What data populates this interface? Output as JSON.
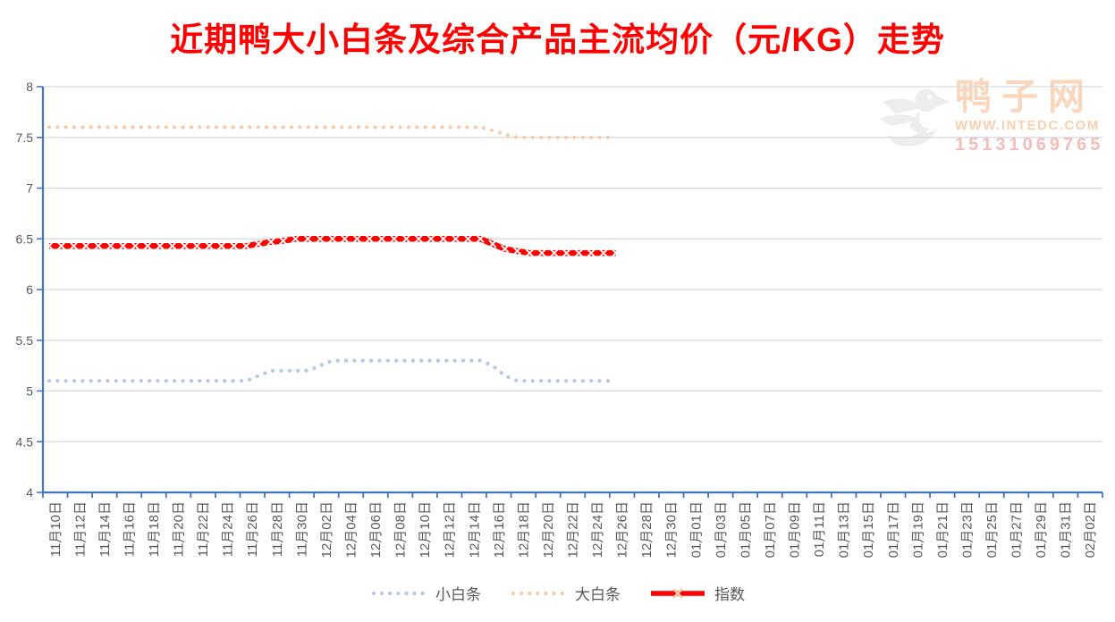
{
  "chart_data": {
    "type": "line",
    "title": "近期鸭大小白条及综合产品主流均价（元/KG）走势",
    "xlabel": "",
    "ylabel": "",
    "ylim": [
      4,
      8
    ],
    "ytick_step": 0.5,
    "yticks": [
      "8",
      "7.5",
      "7",
      "6.5",
      "6",
      "5.5",
      "5",
      "4.5",
      "4"
    ],
    "grid": "horizontal",
    "legend_position": "bottom",
    "x_label_interval_days": 2,
    "data_start": "11月10日",
    "data_end": "12月26日",
    "x_labels": [
      "11月10日",
      "11月12日",
      "11月14日",
      "11月16日",
      "11月18日",
      "11月20日",
      "11月22日",
      "11月24日",
      "11月26日",
      "11月28日",
      "11月30日",
      "12月02日",
      "12月04日",
      "12月06日",
      "12月08日",
      "12月10日",
      "12月12日",
      "12月14日",
      "12月16日",
      "12月18日",
      "12月20日",
      "12月22日",
      "12月24日",
      "12月26日",
      "12月28日",
      "12月30日",
      "01月01日",
      "01月03日",
      "01月05日",
      "01月07日",
      "01月09日",
      "01月11日",
      "01月13日",
      "01月15日",
      "01月17日",
      "01月19日",
      "01月21日",
      "01月23日",
      "01月25日",
      "01月27日",
      "01月29日",
      "01月31日",
      "02月02日"
    ],
    "series": [
      {
        "name": "小白条",
        "color": "#B4C7E7",
        "style": "dotted",
        "values": [
          5.1,
          5.1,
          5.1,
          5.1,
          5.1,
          5.1,
          5.1,
          5.1,
          5.1,
          5.1,
          5.1,
          5.1,
          5.1,
          5.1,
          5.1,
          5.1,
          5.1,
          5.15,
          5.2,
          5.2,
          5.2,
          5.2,
          5.25,
          5.3,
          5.3,
          5.3,
          5.3,
          5.3,
          5.3,
          5.3,
          5.3,
          5.3,
          5.3,
          5.3,
          5.3,
          5.3,
          5.25,
          5.15,
          5.1,
          5.1,
          5.1,
          5.1,
          5.1,
          5.1,
          5.1,
          5.1,
          5.1
        ]
      },
      {
        "name": "大白条",
        "color": "#F8CBAD",
        "style": "dotted",
        "values": [
          7.6,
          7.6,
          7.6,
          7.6,
          7.6,
          7.6,
          7.6,
          7.6,
          7.6,
          7.6,
          7.6,
          7.6,
          7.6,
          7.6,
          7.6,
          7.6,
          7.6,
          7.6,
          7.6,
          7.6,
          7.6,
          7.6,
          7.6,
          7.6,
          7.6,
          7.6,
          7.6,
          7.6,
          7.6,
          7.6,
          7.6,
          7.6,
          7.6,
          7.6,
          7.6,
          7.6,
          7.57,
          7.53,
          7.5,
          7.5,
          7.5,
          7.5,
          7.5,
          7.5,
          7.5,
          7.5,
          7.5
        ]
      },
      {
        "name": "指数",
        "color": "#FF0000",
        "style": "solid-x-marker",
        "values": [
          6.43,
          6.43,
          6.43,
          6.43,
          6.43,
          6.43,
          6.43,
          6.43,
          6.43,
          6.43,
          6.43,
          6.43,
          6.43,
          6.43,
          6.43,
          6.43,
          6.43,
          6.45,
          6.47,
          6.48,
          6.5,
          6.5,
          6.5,
          6.5,
          6.5,
          6.5,
          6.5,
          6.5,
          6.5,
          6.5,
          6.5,
          6.5,
          6.5,
          6.5,
          6.5,
          6.5,
          6.45,
          6.4,
          6.38,
          6.36,
          6.36,
          6.36,
          6.36,
          6.36,
          6.36,
          6.36,
          6.36
        ]
      }
    ]
  },
  "watermark": {
    "brand": "鸭子网",
    "site": "WWW.INTEDC.COM",
    "phone": "15131069765"
  },
  "colors": {
    "title": "#FF0000",
    "axis": "#4472C4",
    "gridline": "#D9D9D9",
    "tick_label": "#595959",
    "legend_text": "#595959",
    "marker_x_on_line": "#FFFFFF",
    "legend_x_marker": "#F5C9A6",
    "watermark_brand": "#FAD7BC",
    "watermark_site": "#F9CFAC",
    "watermark_phone": "#F5BCBC",
    "duck_logo": "#EDEDED"
  }
}
